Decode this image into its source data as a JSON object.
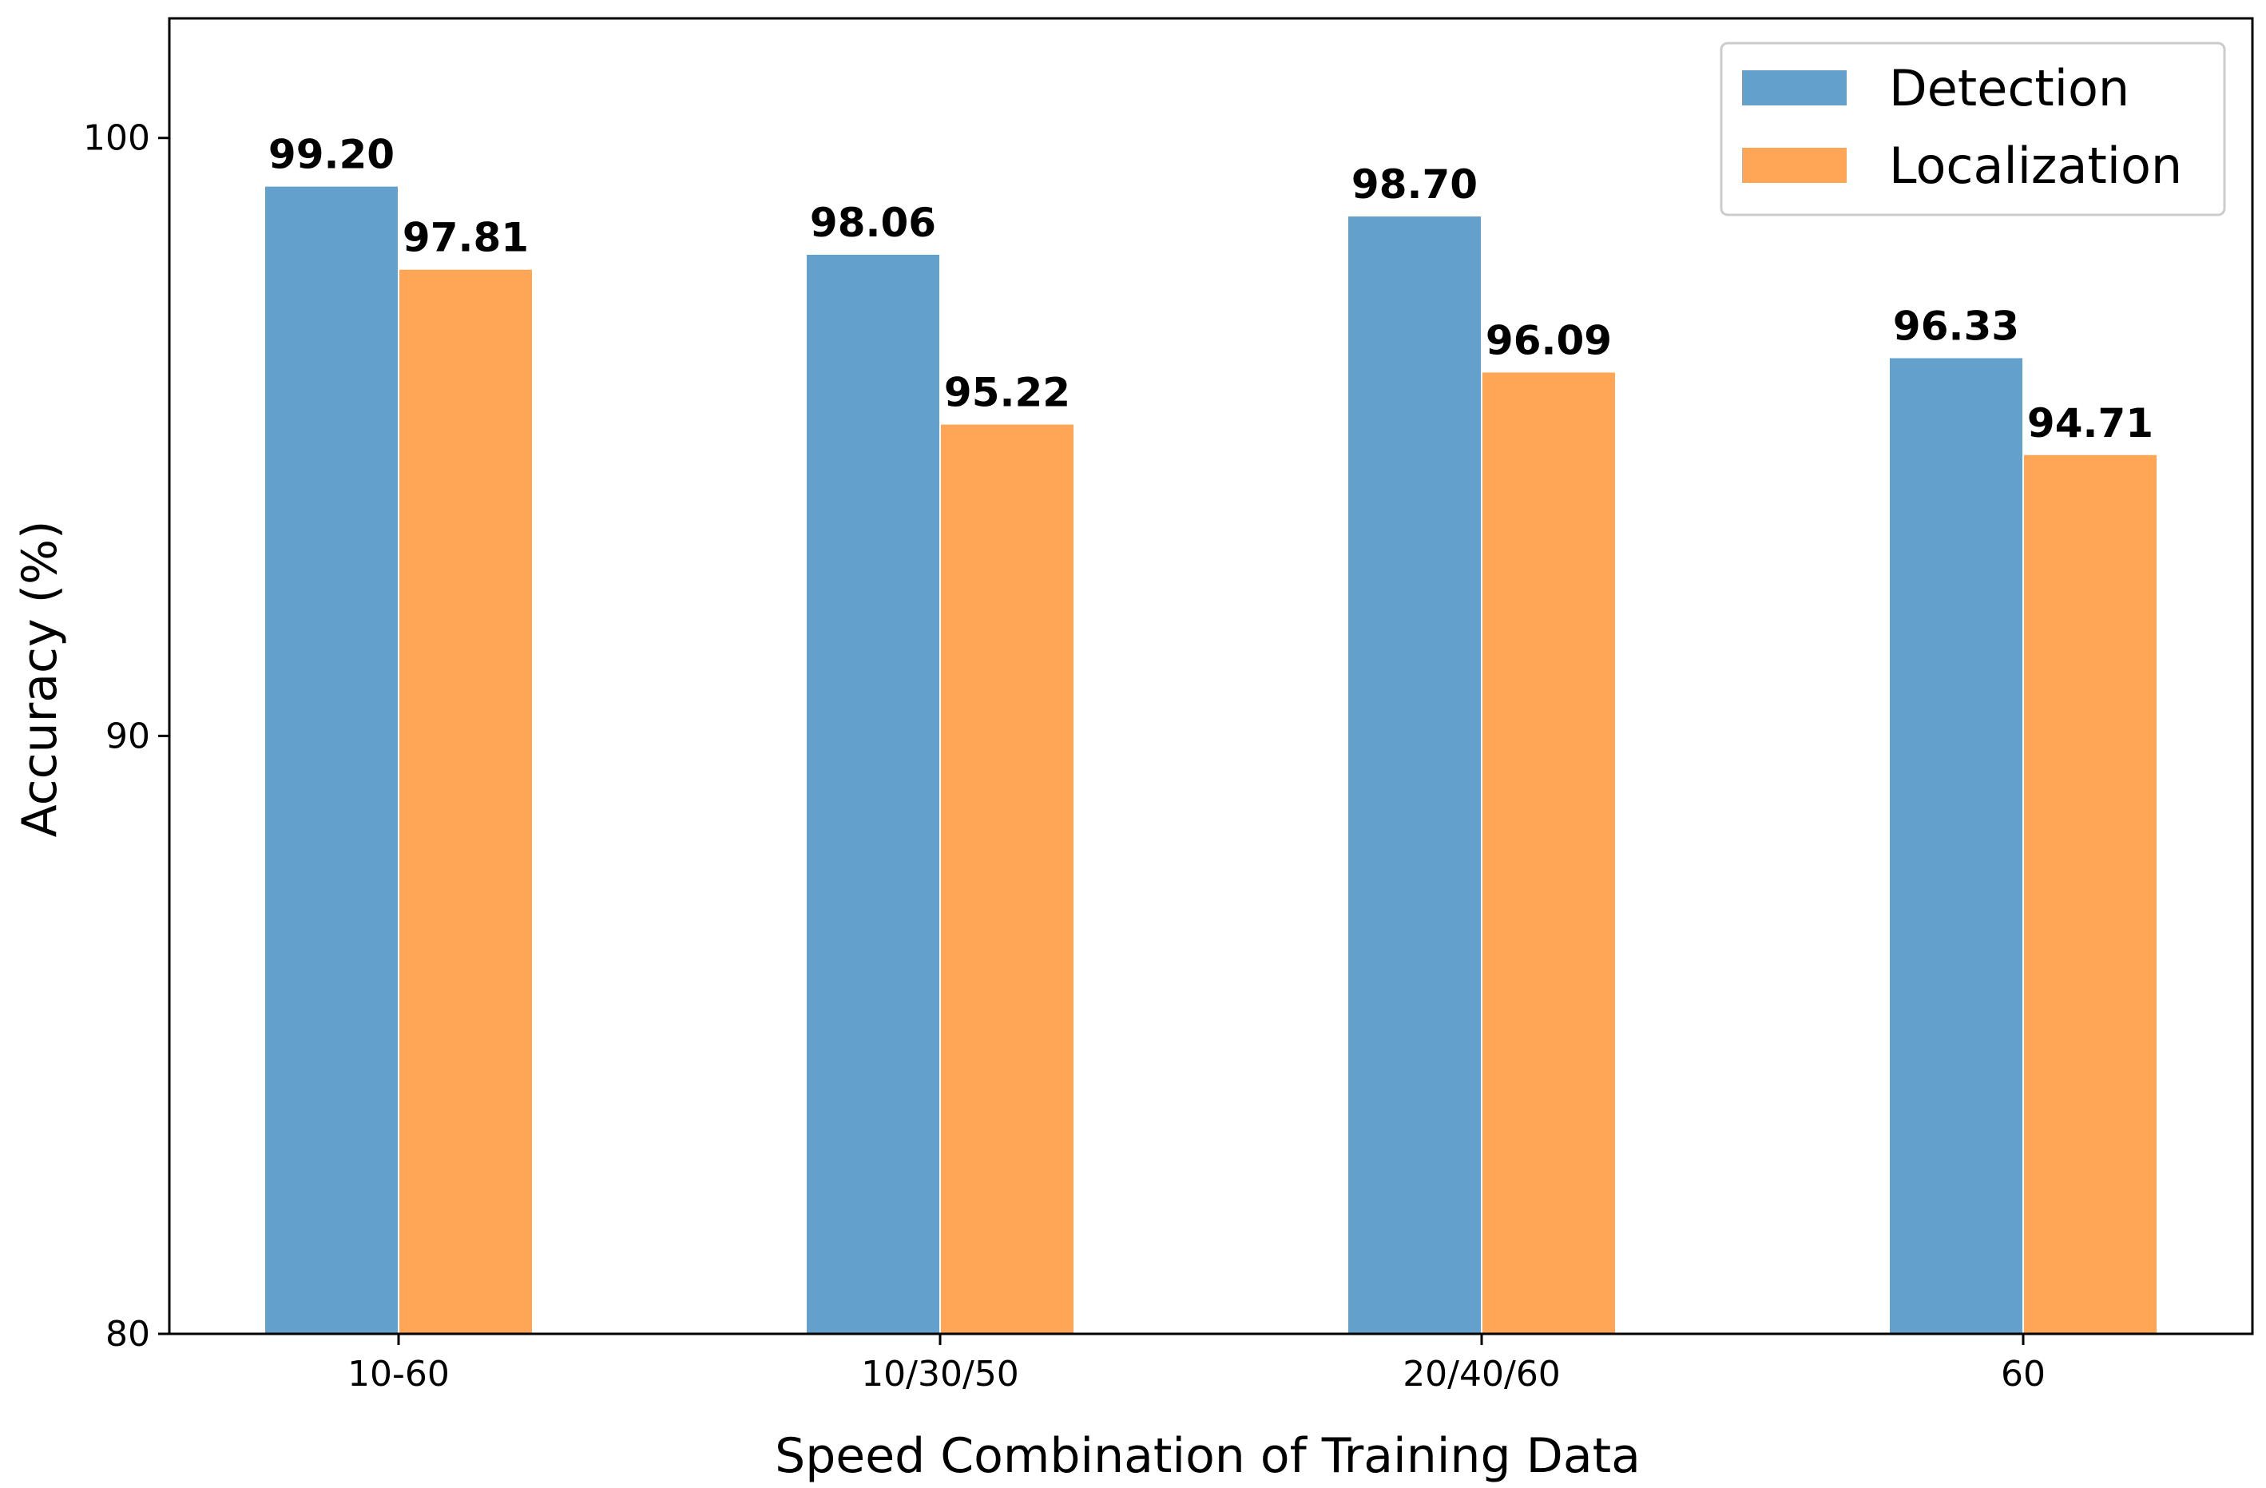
{
  "chart_data": {
    "type": "bar",
    "title": "",
    "xlabel": "Speed Combination of Training Data",
    "ylabel": "Accuracy (%)",
    "categories": [
      "10-60",
      "10/30/50",
      "20/40/60",
      "60"
    ],
    "series": [
      {
        "name": "Detection",
        "color": "#63a0cb",
        "values": [
          99.2,
          98.06,
          98.7,
          96.33
        ],
        "labels": [
          "99.20",
          "98.06",
          "98.70",
          "96.33"
        ]
      },
      {
        "name": "Localization",
        "color": "#ffa556",
        "values": [
          97.81,
          95.22,
          96.09,
          94.71
        ],
        "labels": [
          "97.81",
          "95.22",
          "96.09",
          "94.71"
        ]
      }
    ],
    "ylim": [
      80,
      102
    ],
    "yticks": [
      80,
      90,
      100
    ],
    "ytick_labels": [
      "80",
      "90",
      "100"
    ],
    "grid": false,
    "legend_position": "top-right"
  }
}
